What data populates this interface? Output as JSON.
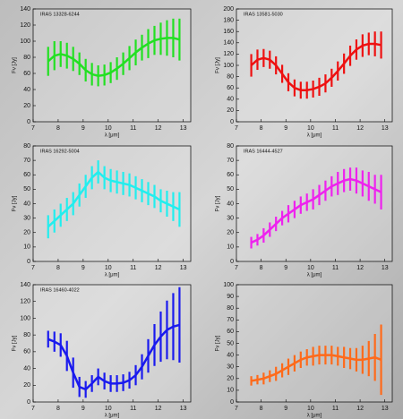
{
  "chart_data": [
    {
      "type": "line",
      "title": "IRAS 13328-6244",
      "xlabel": "λ [μm]",
      "ylabel": "Fν [Jy]",
      "xlim": [
        7,
        13.3
      ],
      "xticks": [
        7,
        8,
        9,
        10,
        11,
        12,
        13
      ],
      "ylim": [
        0,
        140
      ],
      "yticks": [
        0,
        20,
        40,
        60,
        80,
        100,
        120,
        140
      ],
      "x": [
        7.6,
        7.85,
        8.1,
        8.35,
        8.6,
        8.85,
        9.1,
        9.35,
        9.6,
        9.85,
        10.1,
        10.35,
        10.6,
        10.85,
        11.1,
        11.35,
        11.6,
        11.85,
        12.1,
        12.35,
        12.6,
        12.85
      ],
      "series": [
        {
          "color": "#22e022",
          "values": [
            75,
            82,
            84,
            82,
            78,
            72,
            64,
            59,
            57,
            58,
            61,
            66,
            72,
            79,
            86,
            92,
            97,
            101,
            103,
            104,
            104,
            102
          ],
          "errors": [
            18,
            18,
            16,
            16,
            15,
            14,
            14,
            14,
            13,
            13,
            13,
            14,
            14,
            15,
            16,
            16,
            18,
            18,
            20,
            22,
            24,
            26
          ]
        }
      ]
    },
    {
      "type": "line",
      "title": "IRAS 13581-5030",
      "xlabel": "λ [μm]",
      "ylabel": "Fν [Jy]",
      "xlim": [
        7,
        13.3
      ],
      "xticks": [
        7,
        8,
        9,
        10,
        11,
        12,
        13
      ],
      "ylim": [
        0,
        200
      ],
      "yticks": [
        0,
        20,
        40,
        60,
        80,
        100,
        120,
        140,
        160,
        180,
        200
      ],
      "x": [
        7.6,
        7.85,
        8.1,
        8.35,
        8.6,
        8.85,
        9.1,
        9.35,
        9.6,
        9.85,
        10.1,
        10.35,
        10.6,
        10.85,
        11.1,
        11.35,
        11.6,
        11.85,
        12.1,
        12.35,
        12.6,
        12.85
      ],
      "series": [
        {
          "color": "#ee1111",
          "values": [
            100,
            110,
            113,
            110,
            100,
            85,
            70,
            60,
            56,
            56,
            58,
            62,
            68,
            78,
            90,
            103,
            117,
            128,
            135,
            138,
            138,
            136
          ],
          "errors": [
            20,
            18,
            16,
            16,
            16,
            16,
            16,
            15,
            15,
            15,
            15,
            16,
            16,
            16,
            17,
            18,
            18,
            18,
            20,
            20,
            22,
            24
          ]
        }
      ]
    },
    {
      "type": "line",
      "title": "IRAS 16292-5004",
      "xlabel": "λ [μm]",
      "ylabel": "Fν [Jy]",
      "xlim": [
        7,
        13.3
      ],
      "xticks": [
        7,
        8,
        9,
        10,
        11,
        12,
        13
      ],
      "ylim": [
        0,
        80
      ],
      "yticks": [
        0,
        10,
        20,
        30,
        40,
        50,
        60,
        70,
        80
      ],
      "x": [
        7.6,
        7.85,
        8.1,
        8.35,
        8.6,
        8.85,
        9.1,
        9.35,
        9.6,
        9.85,
        10.1,
        10.35,
        10.6,
        10.85,
        11.1,
        11.35,
        11.6,
        11.85,
        12.1,
        12.35,
        12.6,
        12.85
      ],
      "series": [
        {
          "color": "#22eeee",
          "values": [
            24,
            28,
            32,
            36,
            40,
            46,
            52,
            58,
            62,
            58,
            56,
            55,
            54,
            53,
            51,
            49,
            47,
            45,
            42,
            40,
            38,
            36
          ],
          "errors": [
            8,
            8,
            8,
            8,
            8,
            8,
            8,
            8,
            8,
            8,
            8,
            8,
            8,
            8,
            8,
            8,
            8,
            8,
            8,
            9,
            10,
            12
          ]
        }
      ]
    },
    {
      "type": "line",
      "title": "IRAS 16444-4527",
      "xlabel": "λ [μm]",
      "ylabel": "Fν [Jy]",
      "xlim": [
        7,
        13.3
      ],
      "xticks": [
        7,
        8,
        9,
        10,
        11,
        12,
        13
      ],
      "ylim": [
        0,
        80
      ],
      "yticks": [
        0,
        10,
        20,
        30,
        40,
        50,
        60,
        70,
        80
      ],
      "x": [
        7.6,
        7.85,
        8.1,
        8.35,
        8.6,
        8.85,
        9.1,
        9.35,
        9.6,
        9.85,
        10.1,
        10.35,
        10.6,
        10.85,
        11.1,
        11.35,
        11.6,
        11.85,
        12.1,
        12.35,
        12.6,
        12.85
      ],
      "series": [
        {
          "color": "#ee22ee",
          "values": [
            13,
            15,
            18,
            22,
            26,
            30,
            33,
            36,
            39,
            41,
            43,
            46,
            49,
            52,
            54,
            56,
            57,
            56,
            54,
            52,
            50,
            48
          ],
          "errors": [
            4,
            4,
            5,
            5,
            5,
            5,
            6,
            6,
            6,
            6,
            7,
            7,
            7,
            7,
            8,
            8,
            8,
            9,
            9,
            10,
            10,
            12
          ]
        }
      ]
    },
    {
      "type": "line",
      "title": "IRAS 16460-4022",
      "xlabel": "λ [μm]",
      "ylabel": "Fν [Jy]",
      "xlim": [
        7,
        13.3
      ],
      "xticks": [
        7,
        8,
        9,
        10,
        11,
        12,
        13
      ],
      "ylim": [
        0,
        140
      ],
      "yticks": [
        0,
        20,
        40,
        60,
        80,
        100,
        120,
        140
      ],
      "x": [
        7.6,
        7.85,
        8.1,
        8.35,
        8.6,
        8.85,
        9.1,
        9.35,
        9.6,
        9.85,
        10.1,
        10.35,
        10.6,
        10.85,
        11.1,
        11.35,
        11.6,
        11.85,
        12.1,
        12.35,
        12.6,
        12.85
      ],
      "series": [
        {
          "color": "#1a1aee",
          "values": [
            75,
            72,
            68,
            55,
            35,
            18,
            15,
            22,
            30,
            25,
            22,
            22,
            23,
            26,
            32,
            42,
            55,
            68,
            78,
            86,
            90,
            92
          ],
          "errors": [
            10,
            12,
            14,
            18,
            18,
            12,
            10,
            10,
            10,
            10,
            10,
            10,
            10,
            10,
            12,
            15,
            20,
            25,
            30,
            35,
            40,
            45
          ]
        }
      ]
    },
    {
      "type": "line",
      "xlabel": "λ [μm]",
      "ylabel": "Fν [Jy]",
      "xlim": [
        7,
        13.3
      ],
      "xticks": [
        7,
        8,
        9,
        10,
        11,
        12,
        13
      ],
      "ylim": [
        0,
        100
      ],
      "yticks": [
        0,
        10,
        20,
        30,
        40,
        50,
        60,
        70,
        80,
        90,
        100
      ],
      "x": [
        7.6,
        7.85,
        8.1,
        8.35,
        8.6,
        8.85,
        9.1,
        9.35,
        9.6,
        9.85,
        10.1,
        10.35,
        10.6,
        10.85,
        11.1,
        11.35,
        11.6,
        11.85,
        12.1,
        12.35,
        12.6,
        12.85
      ],
      "series": [
        {
          "color": "#ff6a1a",
          "values": [
            18,
            19,
            20,
            22,
            24,
            27,
            30,
            33,
            36,
            38,
            39,
            40,
            40,
            40,
            39,
            38,
            37,
            36,
            36,
            37,
            38,
            36
          ],
          "errors": [
            4,
            4,
            5,
            5,
            6,
            6,
            7,
            7,
            7,
            7,
            8,
            8,
            8,
            8,
            8,
            9,
            9,
            10,
            12,
            15,
            20,
            30
          ]
        }
      ]
    }
  ]
}
